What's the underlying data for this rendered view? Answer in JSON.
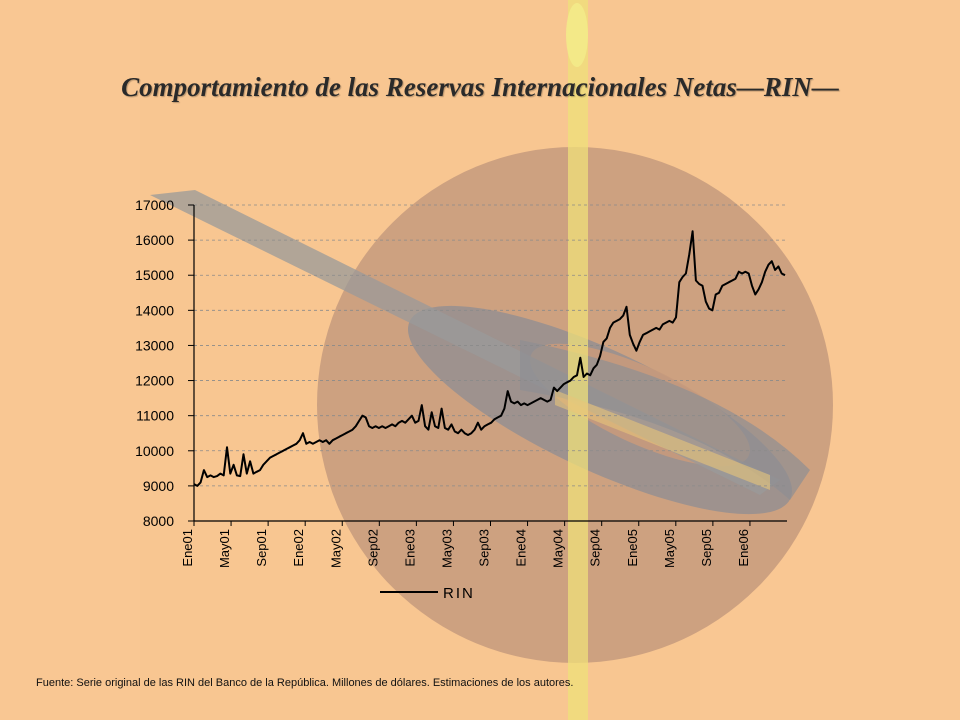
{
  "slide": {
    "title": "Comportamiento de las Reservas Internacionales Netas—RIN—",
    "source": "Fuente: Serie original de las RIN del Banco de la República. Millones de dólares. Estimaciones de los autores."
  },
  "colors": {
    "background": "#f9c793",
    "line": "#000000",
    "grid": "#8a8a8a"
  },
  "chart_data": {
    "type": "line",
    "title": "",
    "xlabel": "",
    "ylabel": "",
    "ylim": [
      8000,
      17000
    ],
    "yticks": [
      17000,
      16000,
      15000,
      14000,
      13000,
      12000,
      11000,
      10000,
      9000,
      8000
    ],
    "xtick_labels": [
      "Ene01",
      "May01",
      "Sep01",
      "Ene02",
      "May02",
      "Sep02",
      "Ene03",
      "May03",
      "Sep03",
      "Ene04",
      "May04",
      "Sep04",
      "Ene05",
      "May05",
      "Sep05",
      "Ene06"
    ],
    "grid": true,
    "legend": "bottom",
    "series": [
      {
        "name": "RIN",
        "x_start": "Ene01",
        "x_end": "May06",
        "values": [
          9050,
          9000,
          9100,
          9450,
          9250,
          9300,
          9250,
          9280,
          9350,
          9300,
          10100,
          9350,
          9600,
          9300,
          9280,
          9900,
          9350,
          9700,
          9350,
          9400,
          9450,
          9600,
          9700,
          9800,
          9850,
          9900,
          9950,
          10000,
          10050,
          10100,
          10150,
          10200,
          10300,
          10500,
          10200,
          10250,
          10200,
          10250,
          10300,
          10250,
          10300,
          10200,
          10300,
          10350,
          10400,
          10450,
          10500,
          10550,
          10600,
          10700,
          10850,
          11000,
          10950,
          10700,
          10650,
          10700,
          10650,
          10700,
          10650,
          10700,
          10750,
          10700,
          10800,
          10850,
          10800,
          10900,
          11000,
          10800,
          10850,
          11300,
          10700,
          10600,
          11100,
          10700,
          10650,
          11200,
          10650,
          10600,
          10750,
          10550,
          10500,
          10600,
          10500,
          10450,
          10500,
          10600,
          10800,
          10600,
          10700,
          10750,
          10800,
          10900,
          10950,
          11000,
          11200,
          11700,
          11400,
          11350,
          11400,
          11300,
          11350,
          11300,
          11350,
          11400,
          11450,
          11500,
          11450,
          11400,
          11450,
          11800,
          11700,
          11800,
          11900,
          11950,
          12000,
          12100,
          12150,
          12650,
          12100,
          12200,
          12150,
          12350,
          12450,
          12700,
          13100,
          13200,
          13500,
          13650,
          13700,
          13750,
          13850,
          14100,
          13300,
          13050,
          12850,
          13100,
          13300,
          13350,
          13400,
          13450,
          13500,
          13450,
          13600,
          13650,
          13700,
          13650,
          13800,
          14800,
          14950,
          15050,
          15600,
          16250,
          14850,
          14750,
          14700,
          14250,
          14050,
          14000,
          14450,
          14500,
          14700,
          14750,
          14800,
          14850,
          14900,
          15100,
          15050,
          15100,
          15050,
          14700,
          14450,
          14600,
          14800,
          15100,
          15300,
          15400,
          15150,
          15250,
          15050,
          15000
        ]
      }
    ]
  }
}
